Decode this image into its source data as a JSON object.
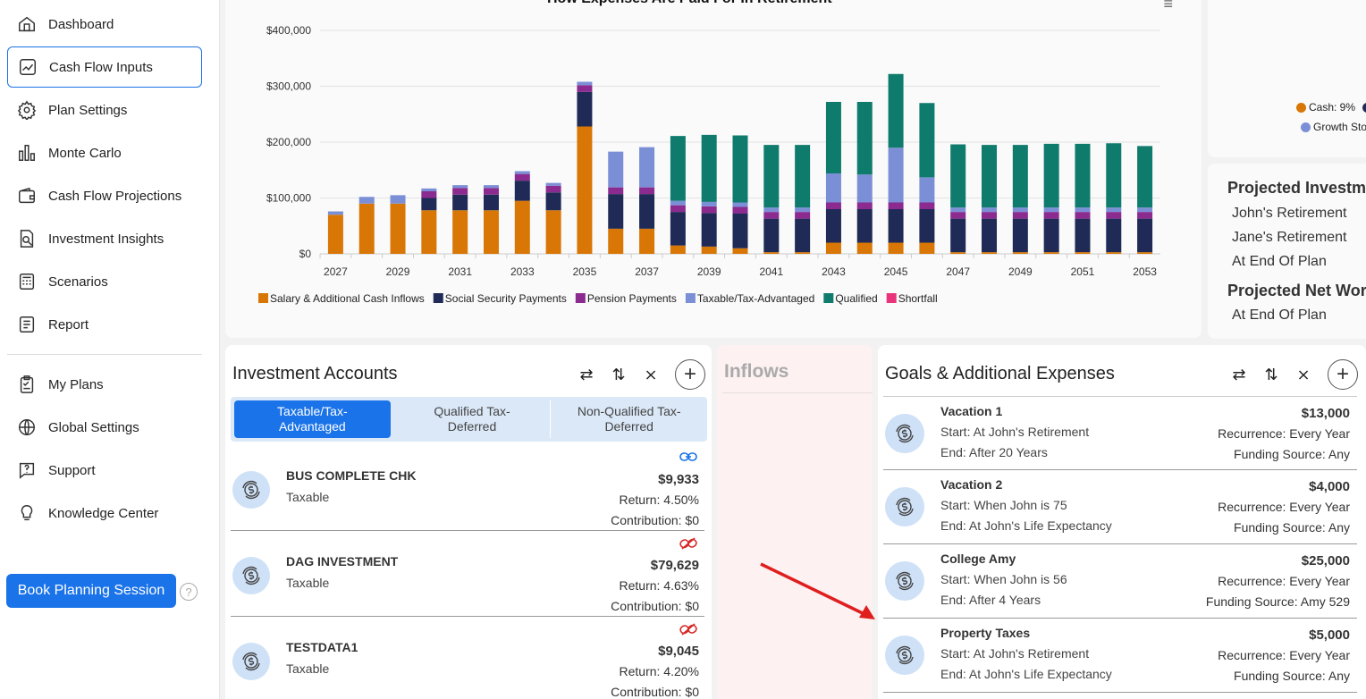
{
  "sidebar": {
    "items": [
      {
        "label": "Dashboard",
        "icon": "home-icon"
      },
      {
        "label": "Cash Flow Inputs",
        "icon": "chart-line-icon",
        "active": true
      },
      {
        "label": "Plan Settings",
        "icon": "gear-icon"
      },
      {
        "label": "Monte Carlo",
        "icon": "bar-chart-icon"
      },
      {
        "label": "Cash Flow Projections",
        "icon": "wallet-icon"
      },
      {
        "label": "Investment Insights",
        "icon": "document-search-icon"
      },
      {
        "label": "Scenarios",
        "icon": "calculator-icon"
      },
      {
        "label": "Report",
        "icon": "report-icon"
      },
      {
        "label": "My Plans",
        "icon": "clipboard-icon"
      },
      {
        "label": "Global Settings",
        "icon": "globe-icon"
      },
      {
        "label": "Support",
        "icon": "chat-question-icon"
      },
      {
        "label": "Knowledge Center",
        "icon": "lightbulb-icon"
      }
    ],
    "book_button": "Book Planning Session",
    "help": "?"
  },
  "chart": {
    "title": "How Expenses Are Paid For In Retirement",
    "menu": "≡"
  },
  "chart_data": {
    "type": "bar",
    "stacked": true,
    "ylim": [
      0,
      400000
    ],
    "yticks": [
      "$0",
      "$100,000",
      "$200,000",
      "$300,000",
      "$400,000"
    ],
    "ytick_values": [
      0,
      100000,
      200000,
      300000,
      400000
    ],
    "categories": [
      "2027",
      "2028",
      "2029",
      "2030",
      "2031",
      "2032",
      "2033",
      "2034",
      "2035",
      "2036",
      "2037",
      "2038",
      "2039",
      "2040",
      "2041",
      "2042",
      "2043",
      "2044",
      "2045",
      "2046",
      "2047",
      "2048",
      "2049",
      "2050",
      "2051",
      "2052",
      "2053"
    ],
    "xtick_labels": [
      "2027",
      "2029",
      "2031",
      "2033",
      "2035",
      "2037",
      "2039",
      "2041",
      "2043",
      "2045",
      "2047",
      "2049",
      "2051",
      "2053"
    ],
    "series": [
      {
        "name": "Salary & Additional Cash Inflows",
        "color": "#d97706",
        "values": [
          70000,
          90000,
          90000,
          78000,
          78000,
          78000,
          95000,
          78000,
          228000,
          45000,
          45000,
          15000,
          13000,
          10000,
          3000,
          3000,
          20000,
          20000,
          20000,
          20000,
          3000,
          3000,
          3000,
          3000,
          3000,
          3000,
          3000
        ]
      },
      {
        "name": "Social Security Payments",
        "color": "#1f2a56",
        "values": [
          0,
          0,
          0,
          22000,
          28000,
          28000,
          36000,
          32000,
          62000,
          62000,
          62000,
          60000,
          60000,
          62000,
          60000,
          60000,
          60000,
          60000,
          60000,
          60000,
          60000,
          60000,
          60000,
          60000,
          60000,
          60000,
          60000
        ]
      },
      {
        "name": "Pension Payments",
        "color": "#8b2a8f",
        "values": [
          0,
          0,
          0,
          12000,
          12000,
          12000,
          12000,
          12000,
          12000,
          12000,
          12000,
          12000,
          12000,
          12000,
          12000,
          12000,
          12000,
          12000,
          12000,
          12000,
          12000,
          12000,
          12000,
          12000,
          12000,
          12000,
          12000
        ]
      },
      {
        "name": "Taxable/Tax-Advantaged",
        "color": "#7b8fd6",
        "values": [
          6000,
          12000,
          15000,
          5000,
          5000,
          5000,
          5000,
          5000,
          6000,
          64000,
          72000,
          8000,
          8000,
          8000,
          8000,
          8000,
          52000,
          50000,
          98000,
          45000,
          8000,
          8000,
          8000,
          8000,
          8000,
          8000,
          8000
        ]
      },
      {
        "name": "Qualified",
        "color": "#0f7b6c",
        "values": [
          0,
          0,
          0,
          0,
          0,
          0,
          0,
          0,
          0,
          0,
          0,
          116000,
          120000,
          120000,
          112000,
          112000,
          128000,
          130000,
          132000,
          133000,
          113000,
          112000,
          112000,
          114000,
          114000,
          115000,
          110000
        ]
      },
      {
        "name": "Shortfall",
        "color": "#e9337a",
        "values": [
          0,
          0,
          0,
          0,
          0,
          0,
          0,
          0,
          0,
          0,
          0,
          0,
          0,
          0,
          0,
          0,
          0,
          0,
          0,
          0,
          0,
          0,
          0,
          0,
          0,
          0,
          0
        ]
      }
    ]
  },
  "allocation_legend": {
    "cash": "Cash: 9%",
    "cash_color": "#d97706",
    "growth": "Growth Sto",
    "growth_color": "#7b8fd6"
  },
  "projected": {
    "investments_heading": "Projected Investm",
    "johns_retirement": "John's Retirement",
    "janes_retirement": "Jane's Retirement",
    "end_of_plan": "At End Of Plan",
    "net_worth_heading": "Projected Net Wor",
    "net_end_of_plan": "At End Of Plan"
  },
  "investment_accounts": {
    "title": "Investment Accounts",
    "tabs": [
      {
        "label": "Taxable/Tax-\nAdvantaged",
        "active": true
      },
      {
        "label": "Qualified Tax-\nDeferred"
      },
      {
        "label": "Non-Qualified Tax-\nDeferred"
      }
    ],
    "accounts": [
      {
        "name": "BUS COMPLETE CHK",
        "type": "Taxable",
        "balance": "$9,933",
        "return": "Return: 4.50%",
        "contribution": "Contribution: $0",
        "link": "linked"
      },
      {
        "name": "DAG INVESTMENT",
        "type": "Taxable",
        "balance": "$79,629",
        "return": "Return: 4.63%",
        "contribution": "Contribution: $0",
        "link": "unlinked"
      },
      {
        "name": "TESTDATA1",
        "type": "Taxable",
        "balance": "$9,045",
        "return": "Return: 4.20%",
        "contribution": "Contribution: $0",
        "link": "unlinked"
      }
    ]
  },
  "inflows": {
    "title": "Inflows"
  },
  "goals": {
    "title": "Goals & Additional Expenses",
    "items": [
      {
        "name": "Vacation 1",
        "start": "Start: At John's Retirement",
        "end": "End: After 20 Years",
        "amount": "$13,000",
        "recurrence": "Recurrence: Every Year",
        "funding": "Funding Source: Any"
      },
      {
        "name": "Vacation 2",
        "start": "Start: When John is 75",
        "end": "End: At John's Life Expectancy",
        "amount": "$4,000",
        "recurrence": "Recurrence: Every Year",
        "funding": "Funding Source: Any"
      },
      {
        "name": "College Amy",
        "start": "Start: When John is 56",
        "end": "End: After 4 Years",
        "amount": "$25,000",
        "recurrence": "Recurrence: Every Year",
        "funding": "Funding Source: Amy 529"
      },
      {
        "name": "Property Taxes",
        "start": "Start: At John's Retirement",
        "end": "End: At John's Life Expectancy",
        "amount": "$5,000",
        "recurrence": "Recurrence: Every Year",
        "funding": "Funding Source: Any"
      }
    ]
  }
}
